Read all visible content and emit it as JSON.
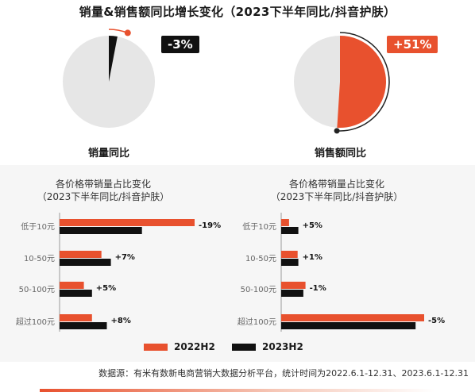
{
  "title": "销量&销售额同比增长变化（2023下半年同比/抖音护肤）",
  "pies": [
    {
      "label": "销量同比",
      "badge": "-3%",
      "change": -3
    },
    {
      "label": "销售额同比",
      "badge": "+51%",
      "change": 51
    }
  ],
  "chart_data": [
    {
      "type": "bar",
      "title": "各价格带销量占比变化",
      "subtitle": "（2023下半年同比/抖音护肤）",
      "categories": [
        "低于10元",
        "10-50元",
        "50-100元",
        "超过100元"
      ],
      "series": [
        {
          "name": "2022H2",
          "values": [
            100,
            31,
            18,
            24
          ]
        },
        {
          "name": "2023H2",
          "values": [
            61,
            38,
            24,
            35
          ]
        }
      ],
      "labels": [
        "-19%",
        "+7%",
        "+5%",
        "+8%"
      ]
    },
    {
      "type": "bar",
      "title": "各价格带销量占比变化",
      "subtitle": "（2023下半年同比/抖音护肤）",
      "categories": [
        "低于10元",
        "10-50元",
        "50-100元",
        "超过100元"
      ],
      "series": [
        {
          "name": "2022H2",
          "values": [
            5.5,
            11.5,
            17,
            100
          ]
        },
        {
          "name": "2023H2",
          "values": [
            12,
            12,
            15.5,
            94
          ]
        }
      ],
      "labels": [
        "+5%",
        "+1%",
        "-1%",
        "-5%"
      ]
    }
  ],
  "legend": [
    {
      "name": "2022H2",
      "color": "#e8512e"
    },
    {
      "name": "2023H2",
      "color": "#111111"
    }
  ],
  "colors": {
    "accent": "#e8512e",
    "dark": "#111111",
    "pie_bg": "#e6e6e6"
  },
  "footer": "数据源：有米有数新电商营销大数据分析平台，统计时间为2022.6.1-12.31、2023.6.1-12.31"
}
